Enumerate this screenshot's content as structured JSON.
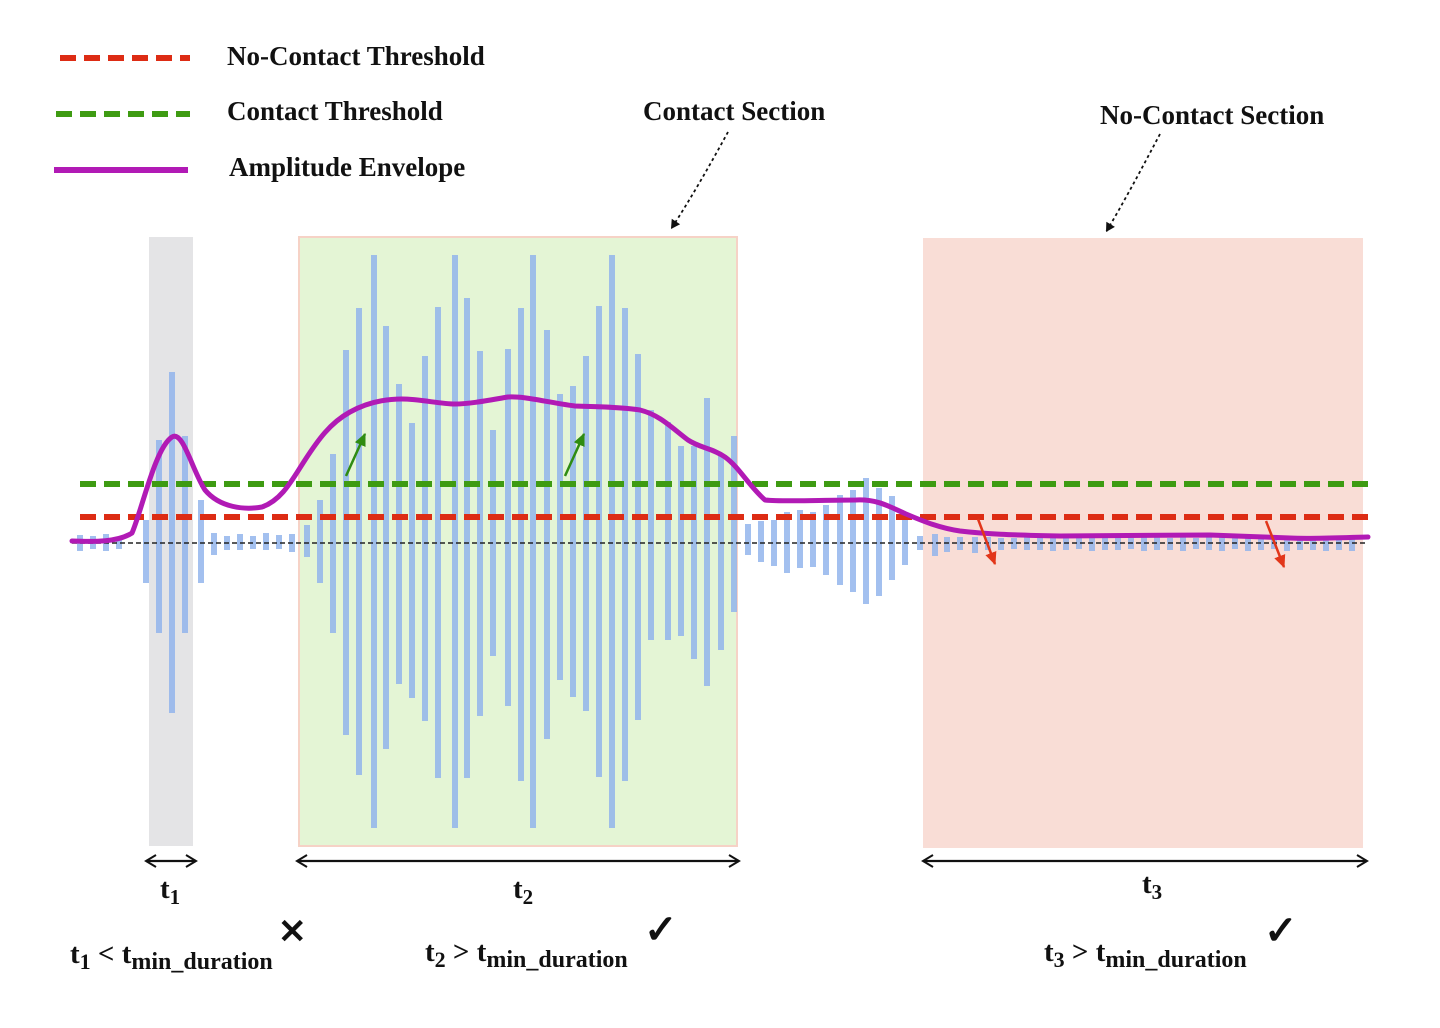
{
  "legend": {
    "no_contact_threshold": "No-Contact Threshold",
    "contact_threshold": "Contact Threshold",
    "amplitude_envelope": "Amplitude Envelope"
  },
  "annotations": {
    "contact_section": "Contact Section",
    "no_contact_section": "No-Contact Section"
  },
  "intervals": [
    {
      "id": "t1",
      "base": "t",
      "sub": "1",
      "comparator": " < ",
      "min_base": "t",
      "min_sub": "min_duration",
      "status": "fail",
      "mark": "✕"
    },
    {
      "id": "t2",
      "base": "t",
      "sub": "2",
      "comparator": " > ",
      "min_base": "t",
      "min_sub": "min_duration",
      "status": "pass",
      "mark": "✓"
    },
    {
      "id": "t3",
      "base": "t",
      "sub": "3",
      "comparator": " > ",
      "min_base": "t",
      "min_sub": "min_duration",
      "status": "pass",
      "mark": "✓"
    }
  ],
  "colors": {
    "no_contact_threshold": "#dd2c14",
    "contact_threshold": "#3e9b12",
    "envelope": "#b11ab5",
    "signal_bars": "#8fb2ec",
    "contact_region": "#e4f5d5",
    "no_contact_region": "#f9ddd6",
    "short_region": "#e4e4e6",
    "fail_mark": "#d32a1f",
    "pass_mark": "#3fd13f",
    "up_arrow": "#2f8c12",
    "down_arrow": "#e2361a"
  },
  "icons": [
    "fail-cross-icon",
    "pass-check-icon",
    "up-arrow-icon",
    "down-arrow-icon",
    "double-arrow-icon"
  ]
}
